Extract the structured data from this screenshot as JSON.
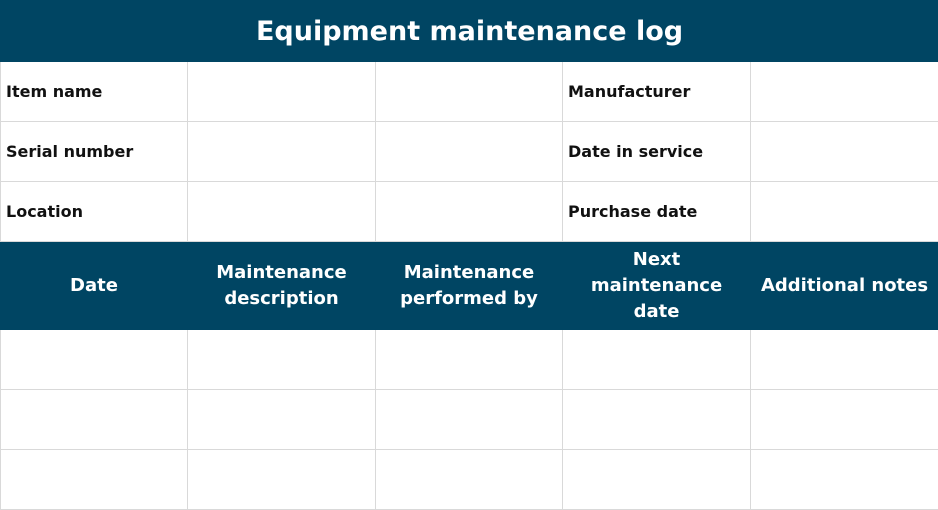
{
  "title": "Equipment maintenance log",
  "info": [
    {
      "left_label": "Item name",
      "right_label": "Manufacturer"
    },
    {
      "left_label": "Serial number",
      "right_label": "Date in service"
    },
    {
      "left_label": "Location",
      "right_label": "Purchase date"
    }
  ],
  "columns": [
    "Date",
    "Maintenance description",
    "Maintenance performed by",
    "Next maintenance date",
    "Additional notes"
  ],
  "colors": {
    "header": "#004563"
  }
}
